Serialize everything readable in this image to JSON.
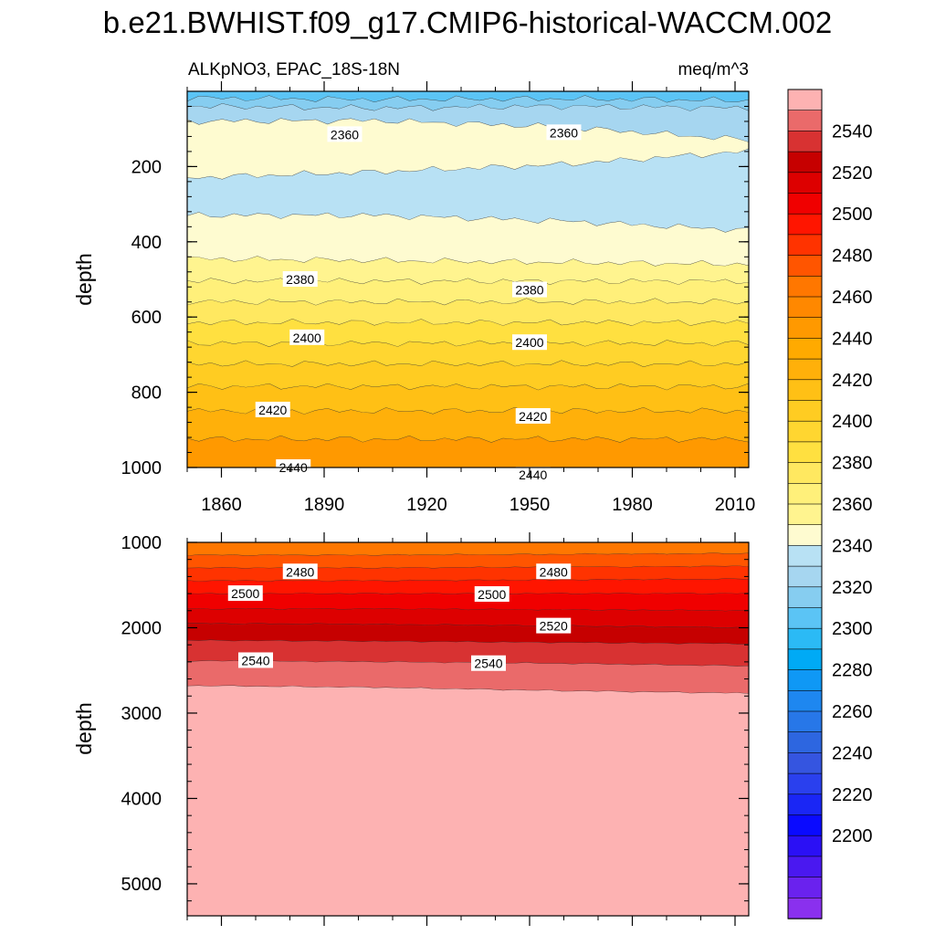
{
  "title": "b.e21.BWHIST.f09_g17.CMIP6-historical-WACCM.002",
  "subtitle_left": "ALKpNO3, EPAC_18S-18N",
  "subtitle_right": "meq/m^3",
  "chart_data": [
    {
      "type": "heatmap",
      "panel": "upper",
      "ylabel": "depth",
      "xlim": [
        1850,
        2014
      ],
      "ylim": [
        0,
        1000
      ],
      "y_reversed": true,
      "x_ticks": [
        1860,
        1890,
        1920,
        1950,
        1980,
        2010
      ],
      "y_ticks": [
        200,
        400,
        600,
        800,
        1000
      ],
      "layers": [
        {
          "value": 2345,
          "color": "#5bc4f5",
          "from": [
            0,
            0,
            0,
            0
          ],
          "to": [
            18,
            22,
            20,
            25
          ]
        },
        {
          "value": 2350,
          "color": "#86cdf0",
          "from": [
            18,
            22,
            20,
            25
          ],
          "to": [
            40,
            45,
            40,
            45
          ]
        },
        {
          "value": 2355,
          "color": "#a6d6f0",
          "from": [
            40,
            45,
            40,
            45
          ],
          "to": [
            80,
            78,
            95,
            130
          ]
        },
        {
          "value": 2365,
          "color": "#fefbd0",
          "from": [
            80,
            78,
            95,
            130
          ],
          "to": [
            230,
            215,
            195,
            160
          ]
        },
        {
          "value": 2360,
          "color": "#b8e1f4",
          "from": [
            230,
            215,
            195,
            160
          ],
          "to": [
            330,
            330,
            345,
            370
          ]
        },
        {
          "value": 2375,
          "color": "#fefbd0",
          "from": [
            330,
            330,
            345,
            370
          ],
          "to": [
            445,
            450,
            455,
            460
          ]
        },
        {
          "value": 2385,
          "color": "#fff48f",
          "from": [
            445,
            450,
            455,
            460
          ],
          "to": [
            505,
            505,
            505,
            505
          ]
        },
        {
          "value": 2390,
          "color": "#fff07a",
          "from": [
            505,
            505,
            505,
            505
          ],
          "to": [
            560,
            560,
            560,
            560
          ]
        },
        {
          "value": 2395,
          "color": "#ffe860",
          "from": [
            560,
            560,
            560,
            560
          ],
          "to": [
            615,
            615,
            615,
            615
          ]
        },
        {
          "value": 2400,
          "color": "#ffe040",
          "from": [
            615,
            615,
            615,
            615
          ],
          "to": [
            670,
            670,
            670,
            670
          ]
        },
        {
          "value": 2405,
          "color": "#ffd630",
          "from": [
            670,
            670,
            670,
            670
          ],
          "to": [
            725,
            725,
            725,
            725
          ]
        },
        {
          "value": 2410,
          "color": "#ffcc22",
          "from": [
            725,
            725,
            725,
            725
          ],
          "to": [
            785,
            785,
            785,
            785
          ]
        },
        {
          "value": 2415,
          "color": "#ffc015",
          "from": [
            785,
            785,
            785,
            785
          ],
          "to": [
            850,
            850,
            850,
            850
          ]
        },
        {
          "value": 2425,
          "color": "#ffb00a",
          "from": [
            850,
            850,
            850,
            850
          ],
          "to": [
            925,
            925,
            925,
            925
          ]
        },
        {
          "value": 2440,
          "color": "#ff9900",
          "from": [
            925,
            925,
            925,
            925
          ],
          "to": [
            1000,
            1000,
            1000,
            1000
          ]
        }
      ],
      "contour_labels": [
        {
          "text": "2360",
          "x": 1896,
          "y": 115
        },
        {
          "text": "2360",
          "x": 1960,
          "y": 110
        },
        {
          "text": "2380",
          "x": 1883,
          "y": 500
        },
        {
          "text": "2380",
          "x": 1950,
          "y": 528
        },
        {
          "text": "2400",
          "x": 1885,
          "y": 655
        },
        {
          "text": "2400",
          "x": 1950,
          "y": 668
        },
        {
          "text": "2420",
          "x": 1875,
          "y": 847
        },
        {
          "text": "2420",
          "x": 1951,
          "y": 864
        },
        {
          "text": "2440",
          "x": 1881,
          "y": 1000
        },
        {
          "text": "2440",
          "x": 1951,
          "y": 1020
        }
      ]
    },
    {
      "type": "heatmap",
      "panel": "lower",
      "ylabel": "depth",
      "xlim": [
        1850,
        2014
      ],
      "ylim": [
        1000,
        5375
      ],
      "y_reversed": true,
      "y_ticks": [
        1000,
        2000,
        3000,
        4000,
        5000
      ],
      "layers": [
        {
          "value": 2465,
          "color": "#ff7700",
          "from": [
            1000,
            1000,
            1000,
            1000
          ],
          "to": [
            1150,
            1150,
            1140,
            1130
          ]
        },
        {
          "value": 2475,
          "color": "#ff5500",
          "from": [
            1150,
            1150,
            1140,
            1130
          ],
          "to": [
            1300,
            1300,
            1290,
            1280
          ]
        },
        {
          "value": 2485,
          "color": "#ff3300",
          "from": [
            1300,
            1300,
            1290,
            1280
          ],
          "to": [
            1450,
            1450,
            1440,
            1430
          ]
        },
        {
          "value": 2495,
          "color": "#ff1500",
          "from": [
            1450,
            1450,
            1440,
            1430
          ],
          "to": [
            1600,
            1600,
            1600,
            1600
          ]
        },
        {
          "value": 2505,
          "color": "#f00000",
          "from": [
            1600,
            1600,
            1600,
            1600
          ],
          "to": [
            1780,
            1780,
            1790,
            1800
          ]
        },
        {
          "value": 2515,
          "color": "#dd0000",
          "from": [
            1780,
            1780,
            1790,
            1800
          ],
          "to": [
            1950,
            1960,
            1980,
            2000
          ]
        },
        {
          "value": 2525,
          "color": "#c60000",
          "from": [
            1950,
            1960,
            1980,
            2000
          ],
          "to": [
            2150,
            2160,
            2175,
            2190
          ]
        },
        {
          "value": 2535,
          "color": "#d83232",
          "from": [
            2150,
            2160,
            2175,
            2190
          ],
          "to": [
            2390,
            2400,
            2420,
            2450
          ]
        },
        {
          "value": 2545,
          "color": "#ea6a6a",
          "from": [
            2390,
            2400,
            2420,
            2450
          ],
          "to": [
            2680,
            2700,
            2740,
            2770
          ]
        },
        {
          "value": 2555,
          "color": "#fdb2b2",
          "from": [
            2680,
            2700,
            2740,
            2770
          ],
          "to": [
            5375,
            5375,
            5375,
            5375
          ]
        }
      ],
      "contour_labels": [
        {
          "text": "2480",
          "x": 1883,
          "y": 1345
        },
        {
          "text": "2480",
          "x": 1957,
          "y": 1345
        },
        {
          "text": "2500",
          "x": 1867,
          "y": 1600
        },
        {
          "text": "2500",
          "x": 1939,
          "y": 1610
        },
        {
          "text": "2520",
          "x": 1957,
          "y": 1980
        },
        {
          "text": "2540",
          "x": 1870,
          "y": 2385
        },
        {
          "text": "2540",
          "x": 1938,
          "y": 2420
        }
      ]
    }
  ],
  "colorbar": {
    "labels": [
      "2540",
      "2520",
      "2500",
      "2480",
      "2460",
      "2440",
      "2420",
      "2400",
      "2380",
      "2360",
      "2340",
      "2320",
      "2300",
      "2280",
      "2260",
      "2240",
      "2220",
      "2200"
    ],
    "colors": [
      "#fdb2b2",
      "#ea6a6a",
      "#d83232",
      "#c60000",
      "#dd0000",
      "#f00000",
      "#ff1500",
      "#ff3300",
      "#ff5500",
      "#ff7700",
      "#ff8800",
      "#ff9900",
      "#ffaa00",
      "#ffb00a",
      "#ffc015",
      "#ffcc22",
      "#ffd630",
      "#ffe040",
      "#ffe860",
      "#fff07a",
      "#fff48f",
      "#fefbd0",
      "#b8e1f4",
      "#a6d6f0",
      "#86cdf0",
      "#5bc4f5",
      "#2bbaf5",
      "#00aaf5",
      "#0f98f5",
      "#1e87f0",
      "#2777e8",
      "#2d66e0",
      "#3555e0",
      "#2a40ee",
      "#1a26f5",
      "#0a0aff",
      "#2b10f5",
      "#4a18f0",
      "#6a22ee",
      "#8a30ee"
    ]
  }
}
